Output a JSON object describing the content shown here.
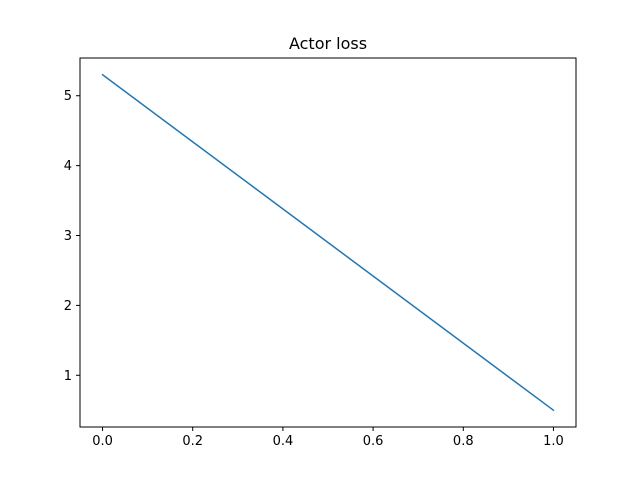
{
  "chart_data": {
    "type": "line",
    "title": "Actor loss",
    "xlabel": "",
    "ylabel": "",
    "xlim": [
      -0.05,
      1.05
    ],
    "ylim": [
      0.26,
      5.54
    ],
    "x_ticks": [
      0.0,
      0.2,
      0.4,
      0.6,
      0.8,
      1.0
    ],
    "x_tick_labels": [
      "0.0",
      "0.2",
      "0.4",
      "0.6",
      "0.8",
      "1.0"
    ],
    "y_ticks": [
      1,
      2,
      3,
      4,
      5
    ],
    "y_tick_labels": [
      "1",
      "2",
      "3",
      "4",
      "5"
    ],
    "grid": false,
    "legend": "none",
    "series": [
      {
        "color": "#1f77b4",
        "x": [
          0.0,
          1.0
        ],
        "y": [
          5.3,
          0.5
        ]
      }
    ]
  }
}
